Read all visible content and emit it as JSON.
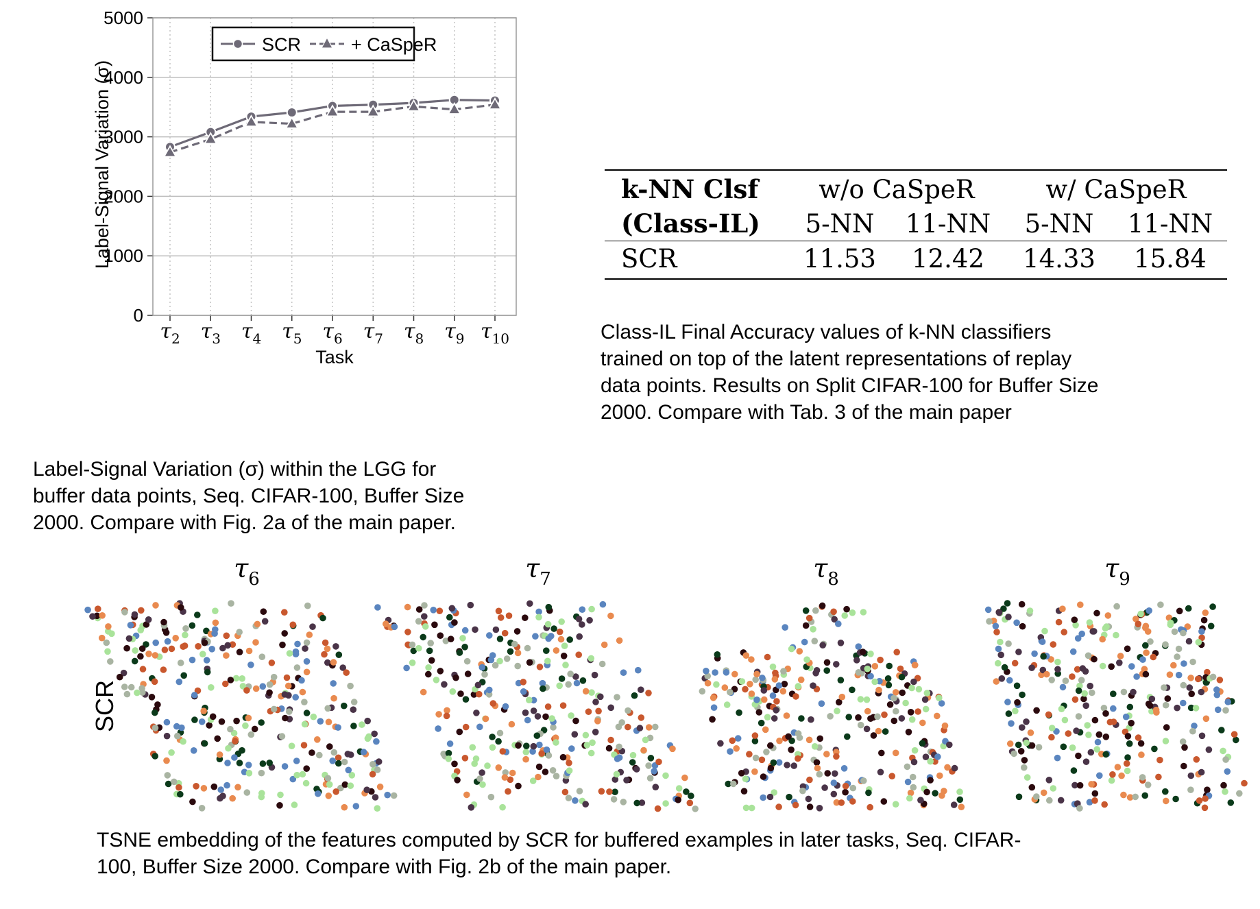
{
  "line_chart": {
    "ylabel": "Label-Signal Variation (σ)",
    "xlabel": "Task",
    "y_ticks": [
      "0",
      "1000",
      "2000",
      "3000",
      "4000",
      "5000"
    ],
    "x_ticks": [
      "τ2",
      "τ3",
      "τ4",
      "τ5",
      "τ6",
      "τ7",
      "τ8",
      "τ9",
      "τ10"
    ],
    "legend": [
      "SCR",
      "+ CaSpeR"
    ],
    "caption": [
      "Label-Signal Variation (σ) within the LGG for",
      "buffer data points, Seq. CIFAR-100, Buffer Size",
      "2000. Compare with Fig. 2a of the main paper."
    ]
  },
  "chart_data": [
    {
      "type": "line",
      "x": [
        "τ2",
        "τ3",
        "τ4",
        "τ5",
        "τ6",
        "τ7",
        "τ8",
        "τ9",
        "τ10"
      ],
      "ylim": [
        0,
        5000
      ],
      "xlabel": "Task",
      "ylabel": "Label-Signal Variation (σ)",
      "grid": true,
      "legend_position": "top",
      "series": [
        {
          "name": "SCR",
          "marker": "circle",
          "style": "solid",
          "color": "#6e6a77",
          "values": [
            2830,
            3080,
            3340,
            3410,
            3520,
            3540,
            3570,
            3620,
            3610
          ]
        },
        {
          "name": "+ CaSpeR",
          "marker": "triangle",
          "style": "dashed",
          "color": "#6e6a77",
          "values": [
            2740,
            2960,
            3250,
            3220,
            3420,
            3420,
            3510,
            3460,
            3540
          ]
        }
      ]
    }
  ],
  "table": {
    "header1": [
      "k-NN Clsf",
      "w/o CaSpeR",
      "w/ CaSpeR"
    ],
    "header2": [
      "(Class-IL)",
      "5-NN",
      "11-NN",
      "5-NN",
      "11-NN"
    ],
    "rows": [
      [
        "SCR",
        "11.53",
        "12.42",
        "14.33",
        "15.84"
      ]
    ],
    "caption": [
      "Class-IL Final Accuracy values of k-NN classifiers",
      "trained on top of the latent representations of replay",
      "data points. Results on Split CIFAR-100 for Buffer Size",
      "2000. Compare with Tab. 3 of the main paper"
    ]
  },
  "tsne": {
    "row_label": "SCR",
    "panels": [
      "τ6",
      "τ7",
      "τ8",
      "τ9"
    ],
    "palette": [
      "#2b0a0e",
      "#4a3448",
      "#e98a4f",
      "#c9582e",
      "#5a85bf",
      "#a9e39a",
      "#a9b4a2",
      "#0b3a1a"
    ],
    "caption": [
      "TSNE embedding of the features computed by SCR for buffered examples in later tasks, Seq. CIFAR-",
      "100, Buffer Size 2000. Compare with Fig. 2b of the main paper."
    ]
  }
}
